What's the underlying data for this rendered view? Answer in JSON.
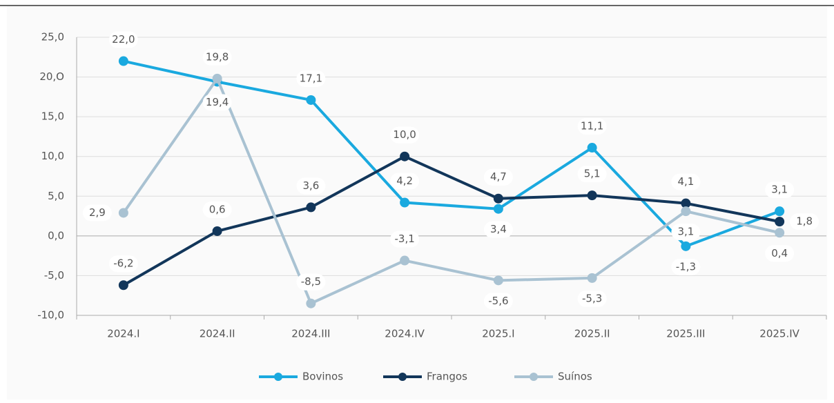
{
  "chart_data": {
    "type": "line",
    "categories": [
      "2024.I",
      "2024.II",
      "2024.III",
      "2024.IV",
      "2025.I",
      "2025.II",
      "2025.III",
      "2025.IV"
    ],
    "series": [
      {
        "name": "Bovinos",
        "color": "#1aa9df",
        "values": [
          22.0,
          19.4,
          17.1,
          4.2,
          3.4,
          11.1,
          -1.3,
          3.1
        ],
        "value_labels": [
          "22,0",
          "19,4",
          "17,1",
          "4,2",
          "3,4",
          "11,1",
          "-1,3",
          "3,1"
        ]
      },
      {
        "name": "Frangos",
        "color": "#12365a",
        "values": [
          -6.2,
          0.6,
          3.6,
          10.0,
          4.7,
          5.1,
          4.1,
          1.8
        ],
        "value_labels": [
          "-6,2",
          "0,6",
          "3,6",
          "10,0",
          "4,7",
          "5,1",
          "4,1",
          "1,8"
        ]
      },
      {
        "name": "Suínos",
        "color": "#a9c2d2",
        "values": [
          2.9,
          19.8,
          -8.5,
          -3.1,
          -5.6,
          -5.3,
          3.1,
          0.4
        ],
        "value_labels": [
          "2,9",
          "19,8",
          "-8,5",
          "-3,1",
          "-5,6",
          "-5,3",
          "3,1",
          "0,4"
        ]
      }
    ],
    "ylim": [
      -10,
      25
    ],
    "yticks": [
      {
        "value": -10,
        "label": "-10,0"
      },
      {
        "value": -5,
        "label": "-5,0"
      },
      {
        "value": 0,
        "label": "0,0"
      },
      {
        "value": 5,
        "label": "5,0"
      },
      {
        "value": 10,
        "label": "10,0"
      },
      {
        "value": 15,
        "label": "15,0"
      },
      {
        "value": 20,
        "label": "20,O"
      },
      {
        "value": 25,
        "label": "25,0"
      }
    ],
    "grid": true,
    "legend": "bottom"
  }
}
